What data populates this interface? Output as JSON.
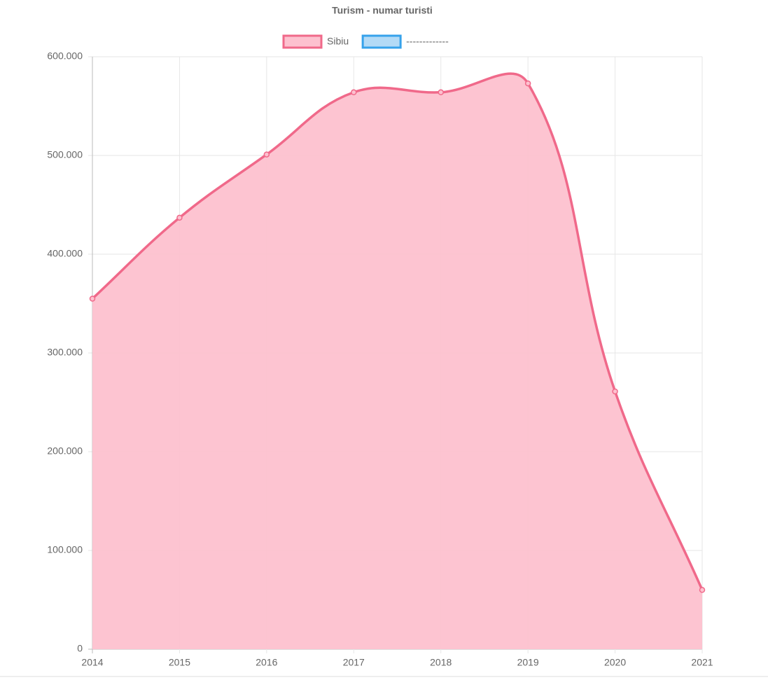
{
  "chart_data": {
    "type": "line",
    "title": "Turism - numar turisti",
    "categories": [
      "2014",
      "2015",
      "2016",
      "2017",
      "2018",
      "2019",
      "2020",
      "2021"
    ],
    "series": [
      {
        "name": "Sibiu",
        "color": "#f0698a",
        "fill": "#fdc1cf",
        "values": [
          355000,
          437000,
          501000,
          564000,
          564000,
          573000,
          261000,
          60000
        ]
      },
      {
        "name": "-------------",
        "color": "#36a2eb",
        "fill": "#b3daf6",
        "values": [
          null,
          null,
          null,
          null,
          null,
          null,
          null,
          null
        ]
      }
    ],
    "ylim": [
      0,
      600000
    ],
    "yticks": [
      0,
      {
        "value": 100000,
        "label": "100.000"
      },
      {
        "value": 200000,
        "label": "200.000"
      },
      {
        "value": 300000,
        "label": "300.000"
      },
      {
        "value": 400000,
        "label": "400.000"
      },
      {
        "value": 500000,
        "label": "500.000"
      },
      {
        "value": 600000,
        "label": "600.000"
      }
    ],
    "grid": true,
    "legend": "top"
  }
}
